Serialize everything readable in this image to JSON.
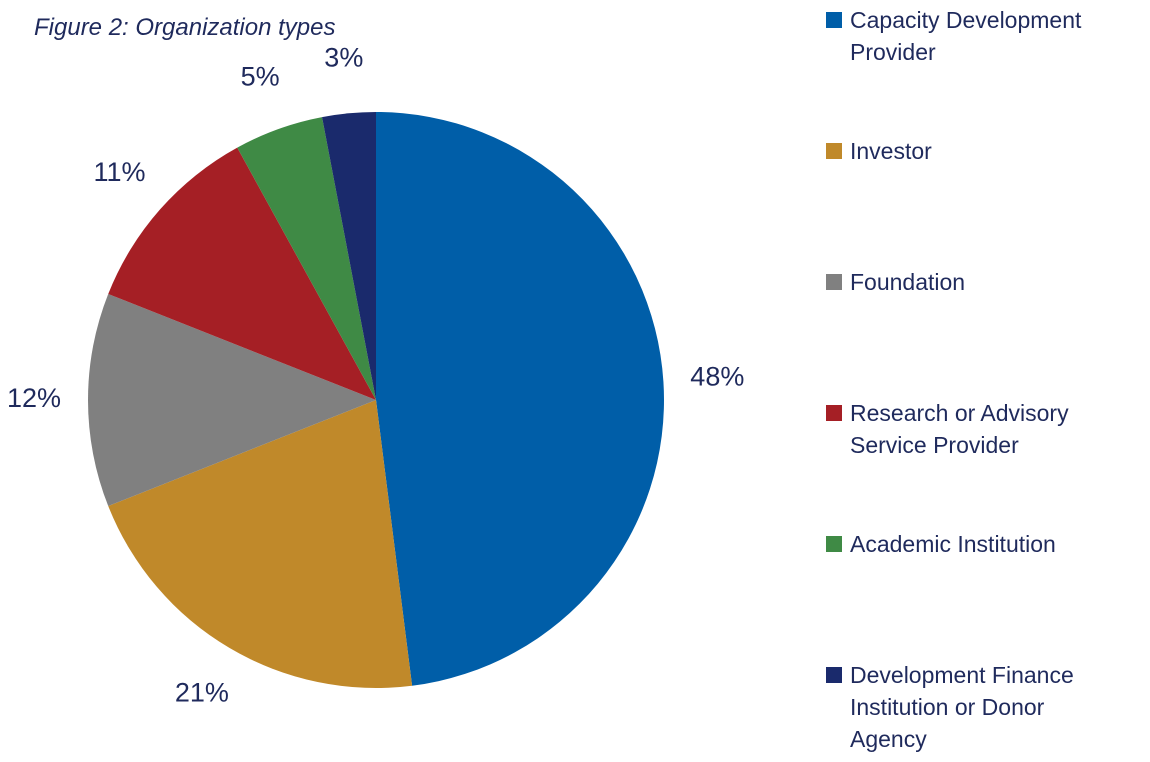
{
  "chart_data": {
    "type": "pie",
    "title": "Figure 2: Organization types",
    "categories": [
      "Capacity Development Provider",
      "Investor",
      "Foundation",
      "Research or Advisory Service Provider",
      "Academic Institution",
      "Development Finance Institution or Donor Agency"
    ],
    "values": [
      48,
      21,
      12,
      11,
      5,
      3
    ],
    "value_labels": [
      "48%",
      "21%",
      "12%",
      "11%",
      "5%",
      "3%"
    ],
    "colors": [
      "#005ea8",
      "#c0892a",
      "#808080",
      "#a51f25",
      "#3f8a45",
      "#1a2a6c"
    ],
    "legend": "right"
  }
}
